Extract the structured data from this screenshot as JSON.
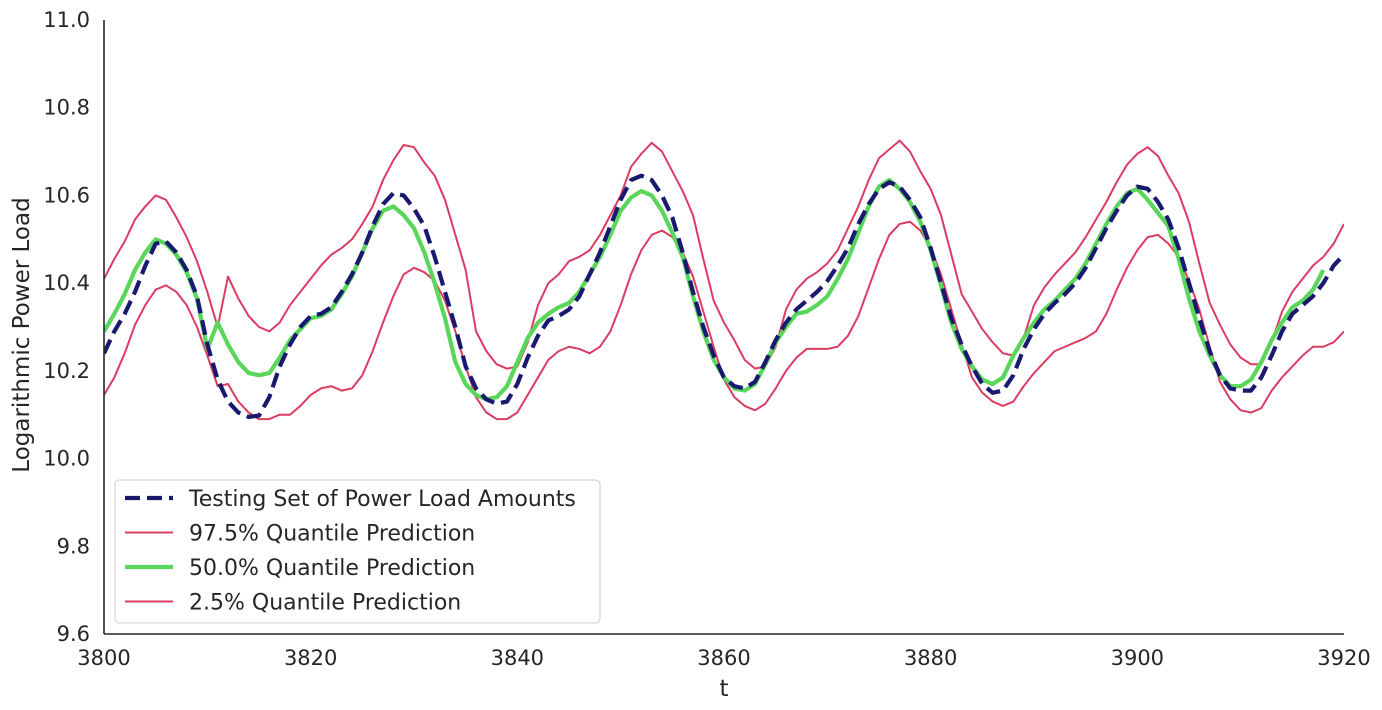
{
  "chart_data": {
    "type": "line",
    "title": "",
    "xlabel": "t",
    "ylabel": "Logarithmic Power Load",
    "xlim": [
      3800,
      3920
    ],
    "ylim": [
      9.6,
      11.0
    ],
    "xticks": [
      3800,
      3820,
      3840,
      3860,
      3880,
      3900,
      3920
    ],
    "yticks": [
      9.6,
      9.8,
      10.0,
      10.2,
      10.4,
      10.6,
      10.8,
      11.0
    ],
    "grid": false,
    "legend_position": "lower-left",
    "x_start": 3800,
    "x_step": 1,
    "series": [
      {
        "name": "Testing Set of Power Load Amounts",
        "color": "#191970",
        "style": "dashed",
        "values": [
          10.24,
          10.29,
          10.33,
          10.38,
          10.44,
          10.49,
          10.495,
          10.47,
          10.43,
          10.37,
          10.26,
          10.18,
          10.13,
          10.105,
          10.095,
          10.098,
          10.14,
          10.21,
          10.26,
          10.3,
          10.325,
          10.33,
          10.345,
          10.38,
          10.42,
          10.47,
          10.53,
          10.58,
          10.605,
          10.6,
          10.57,
          10.53,
          10.46,
          10.38,
          10.3,
          10.21,
          10.16,
          10.135,
          10.125,
          10.13,
          10.17,
          10.23,
          10.28,
          10.315,
          10.325,
          10.34,
          10.37,
          10.42,
          10.47,
          10.53,
          10.59,
          10.635,
          10.645,
          10.635,
          10.6,
          10.55,
          10.47,
          10.38,
          10.3,
          10.235,
          10.185,
          10.165,
          10.16,
          10.175,
          10.22,
          10.27,
          10.31,
          10.34,
          10.36,
          10.38,
          10.405,
          10.44,
          10.48,
          10.535,
          10.58,
          10.615,
          10.63,
          10.62,
          10.59,
          10.55,
          10.48,
          10.4,
          10.32,
          10.26,
          10.21,
          10.17,
          10.15,
          10.155,
          10.19,
          10.25,
          10.295,
          10.33,
          10.355,
          10.375,
          10.4,
          10.435,
          10.48,
          10.525,
          10.565,
          10.6,
          10.62,
          10.615,
          10.585,
          10.545,
          10.48,
          10.4,
          10.32,
          10.245,
          10.19,
          10.16,
          10.155,
          10.155,
          10.185,
          10.235,
          10.29,
          10.33,
          10.35,
          10.37,
          10.4,
          10.44,
          10.465
        ]
      },
      {
        "name": "97.5% Quantile Prediction",
        "color": "#dc3c61",
        "style": "solid",
        "values": [
          10.41,
          10.455,
          10.495,
          10.545,
          10.575,
          10.6,
          10.59,
          10.55,
          10.505,
          10.45,
          10.38,
          10.3,
          10.415,
          10.365,
          10.325,
          10.3,
          10.29,
          10.31,
          10.35,
          10.38,
          10.41,
          10.44,
          10.465,
          10.48,
          10.5,
          10.535,
          10.575,
          10.635,
          10.68,
          10.715,
          10.71,
          10.675,
          10.645,
          10.59,
          10.51,
          10.43,
          10.29,
          10.245,
          10.215,
          10.205,
          10.21,
          10.265,
          10.35,
          10.4,
          10.42,
          10.45,
          10.46,
          10.475,
          10.51,
          10.555,
          10.6,
          10.665,
          10.695,
          10.72,
          10.7,
          10.655,
          10.61,
          10.555,
          10.455,
          10.36,
          10.31,
          10.27,
          10.225,
          10.205,
          10.21,
          10.255,
          10.34,
          10.385,
          10.41,
          10.425,
          10.445,
          10.475,
          10.525,
          10.575,
          10.635,
          10.685,
          10.705,
          10.725,
          10.7,
          10.655,
          10.615,
          10.555,
          10.465,
          10.375,
          10.335,
          10.295,
          10.265,
          10.24,
          10.235,
          10.275,
          10.35,
          10.39,
          10.42,
          10.445,
          10.47,
          10.505,
          10.545,
          10.585,
          10.63,
          10.67,
          10.695,
          10.71,
          10.69,
          10.645,
          10.605,
          10.54,
          10.445,
          10.355,
          10.305,
          10.26,
          10.23,
          10.215,
          10.215,
          10.265,
          10.335,
          10.38,
          10.41,
          10.44,
          10.46,
          10.49,
          10.535
        ]
      },
      {
        "name": "50.0% Quantile Prediction",
        "color": "#5ad65a",
        "style": "solid",
        "values": [
          10.29,
          10.33,
          10.375,
          10.43,
          10.47,
          10.5,
          10.49,
          10.465,
          10.425,
          10.365,
          10.25,
          10.31,
          10.26,
          10.22,
          10.195,
          10.19,
          10.195,
          10.23,
          10.27,
          10.295,
          10.32,
          10.325,
          10.34,
          10.375,
          10.415,
          10.47,
          10.525,
          10.565,
          10.575,
          10.555,
          10.525,
          10.47,
          10.4,
          10.32,
          10.22,
          10.17,
          10.145,
          10.135,
          10.14,
          10.165,
          10.22,
          10.275,
          10.31,
          10.33,
          10.345,
          10.355,
          10.38,
          10.42,
          10.46,
          10.51,
          10.565,
          10.595,
          10.61,
          10.6,
          10.565,
          10.515,
          10.46,
          10.37,
          10.29,
          10.225,
          10.185,
          10.16,
          10.155,
          10.17,
          10.215,
          10.265,
          10.3,
          10.33,
          10.335,
          10.35,
          10.37,
          10.41,
          10.455,
          10.515,
          10.575,
          10.62,
          10.635,
          10.615,
          10.585,
          10.54,
          10.475,
          10.395,
          10.31,
          10.25,
          10.21,
          10.18,
          10.17,
          10.185,
          10.235,
          10.275,
          10.31,
          10.34,
          10.36,
          10.385,
          10.41,
          10.445,
          10.49,
          10.535,
          10.575,
          10.605,
          10.615,
          10.59,
          10.56,
          10.53,
          10.455,
          10.365,
          10.29,
          10.235,
          10.19,
          10.165,
          10.165,
          10.18,
          10.22,
          10.27,
          10.31,
          10.345,
          10.36,
          10.385,
          10.43
        ]
      },
      {
        "name": "2.5% Quantile Prediction",
        "color": "#dc3c61",
        "style": "solid",
        "values": [
          10.145,
          10.185,
          10.24,
          10.305,
          10.35,
          10.385,
          10.395,
          10.38,
          10.35,
          10.3,
          10.235,
          10.165,
          10.17,
          10.13,
          10.105,
          10.09,
          10.09,
          10.1,
          10.1,
          10.12,
          10.145,
          10.16,
          10.165,
          10.155,
          10.16,
          10.19,
          10.245,
          10.31,
          10.37,
          10.42,
          10.435,
          10.425,
          10.405,
          10.36,
          10.29,
          10.21,
          10.14,
          10.105,
          10.09,
          10.09,
          10.105,
          10.145,
          10.185,
          10.225,
          10.245,
          10.255,
          10.25,
          10.24,
          10.255,
          10.29,
          10.35,
          10.42,
          10.475,
          10.51,
          10.52,
          10.505,
          10.47,
          10.415,
          10.335,
          10.255,
          10.18,
          10.14,
          10.12,
          10.11,
          10.125,
          10.16,
          10.2,
          10.23,
          10.25,
          10.25,
          10.25,
          10.255,
          10.28,
          10.325,
          10.39,
          10.455,
          10.51,
          10.535,
          10.54,
          10.52,
          10.48,
          10.42,
          10.34,
          10.26,
          10.185,
          10.15,
          10.13,
          10.12,
          10.13,
          10.165,
          10.195,
          10.22,
          10.245,
          10.255,
          10.265,
          10.275,
          10.29,
          10.33,
          10.385,
          10.435,
          10.475,
          10.505,
          10.51,
          10.49,
          10.46,
          10.405,
          10.34,
          10.255,
          10.175,
          10.135,
          10.11,
          10.105,
          10.115,
          10.155,
          10.185,
          10.21,
          10.235,
          10.255,
          10.255,
          10.265,
          10.29
        ]
      }
    ]
  }
}
